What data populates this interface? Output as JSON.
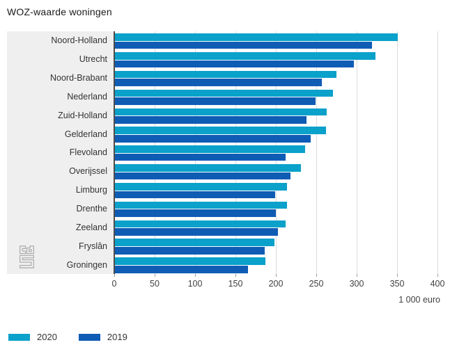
{
  "title": "WOZ-waarde woningen",
  "unit_label": "1 000 euro",
  "colors": {
    "series_2020": "#0aa1ca",
    "series_2019": "#0f5cb5",
    "label_panel_bg": "#efefef",
    "gridline": "#dcdcdc",
    "axis_line": "#4d4d4d",
    "tick": "#9b9b9b",
    "text": "#333333"
  },
  "logo": "cbs",
  "chart_data": {
    "type": "bar",
    "orientation": "horizontal",
    "title": "WOZ-waarde woningen",
    "xlabel": "1 000 euro",
    "xlim": [
      0,
      400
    ],
    "xticks": [
      0,
      50,
      100,
      150,
      200,
      250,
      300,
      350,
      400
    ],
    "grid": true,
    "legend_position": "bottom",
    "categories": [
      "Noord-Holland",
      "Utrecht",
      "Noord-Brabant",
      "Nederland",
      "Zuid-Holland",
      "Gelderland",
      "Flevoland",
      "Overijssel",
      "Limburg",
      "Drenthe",
      "Zeeland",
      "Fryslân",
      "Groningen"
    ],
    "series": [
      {
        "name": "2020",
        "color": "#0aa1ca",
        "values": [
          350,
          322,
          274,
          270,
          262,
          261,
          235,
          230,
          213,
          213,
          211,
          197,
          186
        ]
      },
      {
        "name": "2019",
        "color": "#0f5cb5",
        "values": [
          318,
          296,
          256,
          248,
          237,
          242,
          211,
          217,
          198,
          199,
          202,
          185,
          165
        ]
      }
    ]
  }
}
